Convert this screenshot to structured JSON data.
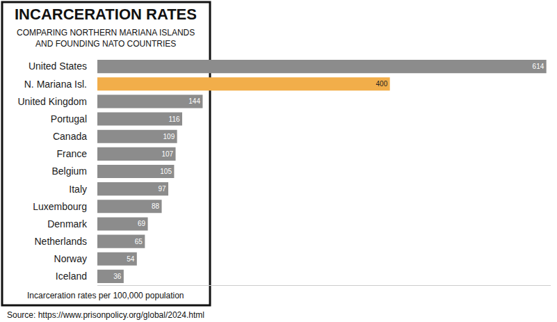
{
  "chart_data": {
    "type": "bar",
    "orientation": "horizontal",
    "title": "INCARCERATION RATES",
    "subtitle": "COMPARING NORTHERN MARIANA ISLANDS\nAND FOUNDING NATO COUNTRIES",
    "xlabel": "Incarceration rates per 100,000 population",
    "annotations": [
      "Source: https://www.prisonpolicy.org/global/2024.html"
    ],
    "categories": [
      "United States",
      "N. Mariana Isl.",
      "United Kingdom",
      "Portugal",
      "Canada",
      "France",
      "Belgium",
      "Italy",
      "Luxembourg",
      "Denmark",
      "Netherlands",
      "Norway",
      "Iceland"
    ],
    "values": [
      614,
      400,
      144,
      116,
      109,
      107,
      105,
      97,
      88,
      69,
      65,
      54,
      36
    ],
    "colors": [
      "#8c8c8c",
      "#f2ae4a",
      "#8c8c8c",
      "#8c8c8c",
      "#8c8c8c",
      "#8c8c8c",
      "#8c8c8c",
      "#8c8c8c",
      "#8c8c8c",
      "#8c8c8c",
      "#8c8c8c",
      "#8c8c8c",
      "#8c8c8c"
    ],
    "xlim": [
      0,
      620
    ],
    "grid": false,
    "data_labels": true,
    "tick_labels": "y"
  }
}
